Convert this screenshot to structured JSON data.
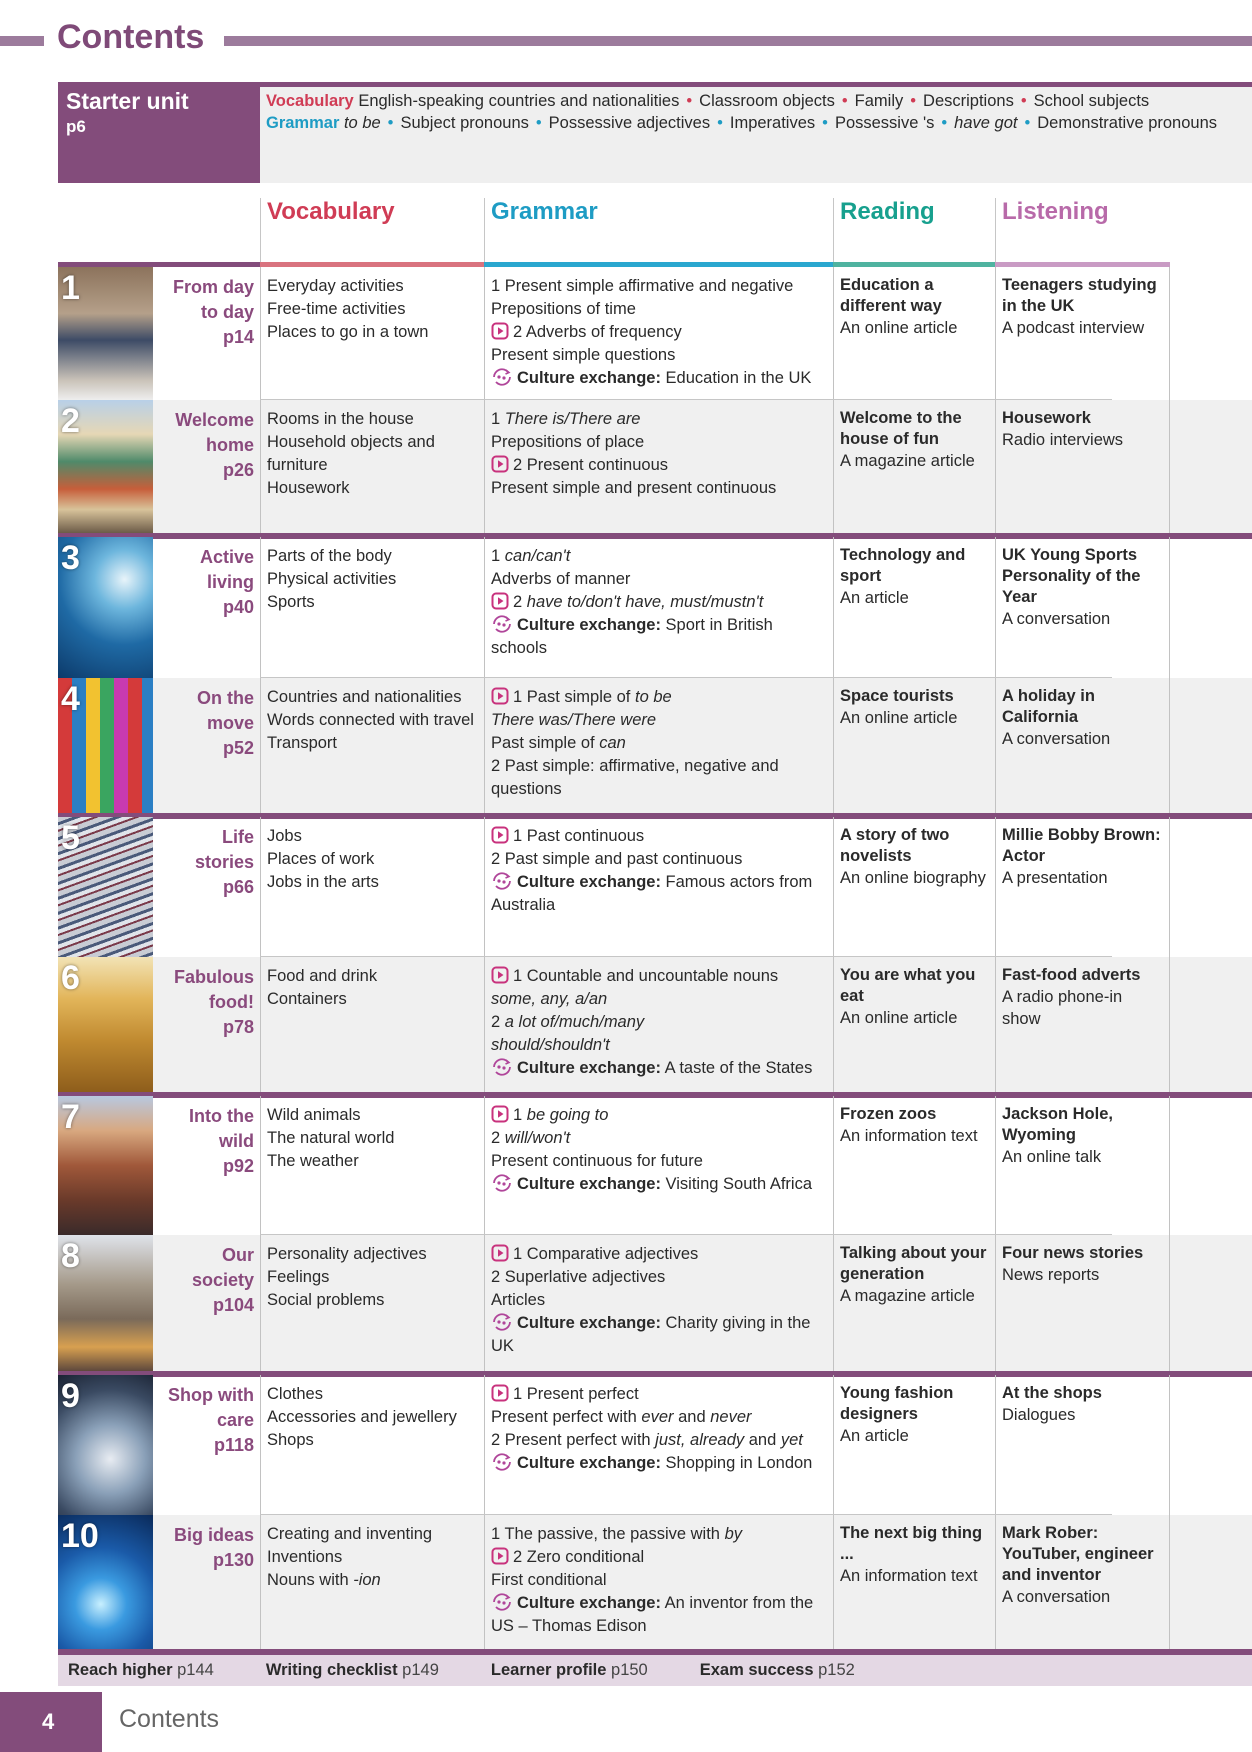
{
  "page_title": "Contents",
  "starter": {
    "title": "Starter unit",
    "page": "p6",
    "vocab_label": "Vocabulary",
    "vocab_items": [
      "English-speaking countries and nationalities",
      "Classroom objects",
      "Family",
      "Descriptions",
      "School subjects"
    ],
    "grammar_label": "Grammar",
    "grammar_items": [
      [
        [
          "to be",
          "i"
        ]
      ],
      [
        [
          "Subject pronouns",
          ""
        ]
      ],
      [
        [
          "Possessive adjectives",
          ""
        ]
      ],
      [
        [
          "Imperatives",
          ""
        ]
      ],
      [
        [
          "Possessive 's",
          ""
        ]
      ],
      [
        [
          "have got",
          "i"
        ]
      ],
      [
        [
          "Demonstrative pronouns",
          ""
        ]
      ]
    ]
  },
  "headers": [
    {
      "label": "Vocabulary",
      "color": "#d03c55",
      "bar": "#d9737f"
    },
    {
      "label": "Grammar",
      "color": "#1e9cc4",
      "bar": "#2aa7cf"
    },
    {
      "label": "Reading",
      "color": "#17a08e",
      "bar": "#4fb3a0"
    },
    {
      "label": "Listening",
      "color": "#b86aa9",
      "bar": "#c99bc4"
    }
  ],
  "colors": {
    "brand": "#834c7b",
    "video_icon": "#c8327d",
    "culture_icon": "#b0469a"
  },
  "culture_label": "Culture exchange:",
  "units": [
    {
      "num": "1",
      "title": [
        "From day",
        "to day"
      ],
      "page": "p14",
      "image": "students-walking",
      "vocab": [
        [
          [
            "Everyday activities",
            ""
          ]
        ],
        [
          [
            "Free-time activities",
            ""
          ]
        ],
        [
          [
            "Places to go in a town",
            ""
          ]
        ]
      ],
      "grammar": [
        {
          "parts": [
            [
              "1 Present simple affirmative and negative",
              ""
            ]
          ]
        },
        {
          "parts": [
            [
              "Prepositions of time",
              ""
            ]
          ]
        },
        {
          "icon": "video",
          "parts": [
            [
              "2 Adverbs of frequency",
              ""
            ]
          ]
        },
        {
          "parts": [
            [
              "Present simple questions",
              ""
            ]
          ]
        },
        {
          "icon": "culture",
          "parts": [
            [
              "Education in the UK",
              ""
            ]
          ]
        }
      ],
      "reading": {
        "title": "Education a different way",
        "type": "An online article"
      },
      "listening": {
        "title": "Teenagers studying in the UK",
        "type": "A podcast interview"
      }
    },
    {
      "num": "2",
      "title": [
        "Welcome",
        "home"
      ],
      "page": "p26",
      "image": "houses",
      "vocab": [
        [
          [
            "Rooms in the house",
            ""
          ]
        ],
        [
          [
            "Household objects and furniture",
            ""
          ]
        ],
        [
          [
            "Housework",
            ""
          ]
        ]
      ],
      "grammar": [
        {
          "parts": [
            [
              "1 ",
              ""
            ],
            [
              "There is/There are",
              "i"
            ]
          ]
        },
        {
          "parts": [
            [
              "Prepositions of place",
              ""
            ]
          ]
        },
        {
          "icon": "video",
          "parts": [
            [
              "2 Present continuous",
              ""
            ]
          ]
        },
        {
          "parts": [
            [
              "Present simple and present continuous",
              ""
            ]
          ]
        }
      ],
      "reading": {
        "title": "Welcome to the house of fun",
        "type": "A magazine article"
      },
      "listening": {
        "title": "Housework",
        "type": "Radio interviews"
      }
    },
    {
      "num": "3",
      "title": [
        "Active",
        "living"
      ],
      "page": "p40",
      "image": "wave",
      "vocab": [
        [
          [
            "Parts of the body",
            ""
          ]
        ],
        [
          [
            "Physical activities",
            ""
          ]
        ],
        [
          [
            "Sports",
            ""
          ]
        ]
      ],
      "grammar": [
        {
          "parts": [
            [
              "1 ",
              ""
            ],
            [
              "can/can't",
              "i"
            ]
          ]
        },
        {
          "parts": [
            [
              "Adverbs of manner",
              ""
            ]
          ]
        },
        {
          "icon": "video",
          "parts": [
            [
              "2 ",
              ""
            ],
            [
              "have to/don't have, must/mustn't",
              "i"
            ]
          ]
        },
        {
          "icon": "culture",
          "parts": [
            [
              "Sport in British schools",
              ""
            ]
          ]
        }
      ],
      "reading": {
        "title": "Technology and sport",
        "type": "An article"
      },
      "listening": {
        "title": "UK Young Sports Personality of the Year",
        "type": "A conversation"
      }
    },
    {
      "num": "4",
      "title": [
        "On the",
        "move"
      ],
      "page": "p52",
      "image": "market",
      "vocab": [
        [
          [
            "Countries and nationalities",
            ""
          ]
        ],
        [
          [
            "Words connected with travel",
            ""
          ]
        ],
        [
          [
            "Transport",
            ""
          ]
        ]
      ],
      "grammar": [
        {
          "icon": "video",
          "parts": [
            [
              "1 Past simple of ",
              ""
            ],
            [
              "to be",
              "i"
            ]
          ]
        },
        {
          "parts": [
            [
              "There was/There were",
              "i"
            ]
          ]
        },
        {
          "parts": [
            [
              "Past simple of ",
              ""
            ],
            [
              "can",
              "i"
            ]
          ]
        },
        {
          "parts": [
            [
              "2 Past simple: affirmative, negative and questions",
              ""
            ]
          ]
        }
      ],
      "reading": {
        "title": "Space tourists",
        "type": "An online article"
      },
      "listening": {
        "title": "A holiday in California",
        "type": "A conversation"
      }
    },
    {
      "num": "5",
      "title": [
        "Life",
        "stories"
      ],
      "page": "p66",
      "image": "mixing-desk",
      "vocab": [
        [
          [
            "Jobs",
            ""
          ]
        ],
        [
          [
            "Places of work",
            ""
          ]
        ],
        [
          [
            "Jobs in the arts",
            ""
          ]
        ]
      ],
      "grammar": [
        {
          "icon": "video",
          "parts": [
            [
              "1 Past continuous",
              ""
            ]
          ]
        },
        {
          "parts": [
            [
              "2 Past simple and past continuous",
              ""
            ]
          ]
        },
        {
          "icon": "culture",
          "parts": [
            [
              "Famous actors from Australia",
              ""
            ]
          ]
        }
      ],
      "reading": {
        "title": "A story of two novelists",
        "type": "An online biography"
      },
      "listening": {
        "title": "Millie Bobby Brown: Actor",
        "type": "A presentation"
      }
    },
    {
      "num": "6",
      "title": [
        "Fabulous",
        "food!"
      ],
      "page": "p78",
      "image": "wheat",
      "vocab": [
        [
          [
            "Food and drink",
            ""
          ]
        ],
        [
          [
            "Containers",
            ""
          ]
        ]
      ],
      "grammar": [
        {
          "icon": "video",
          "parts": [
            [
              "1 Countable and uncountable nouns",
              ""
            ]
          ]
        },
        {
          "parts": [
            [
              "some, any, a/an",
              "i"
            ]
          ]
        },
        {
          "parts": [
            [
              "2 ",
              ""
            ],
            [
              "a lot of/much/many",
              "i"
            ]
          ]
        },
        {
          "parts": [
            [
              "should/shouldn't",
              "i"
            ]
          ]
        },
        {
          "icon": "culture",
          "parts": [
            [
              "A taste of the States",
              ""
            ]
          ]
        }
      ],
      "reading": {
        "title": "You are what you eat",
        "type": "An online article"
      },
      "listening": {
        "title": "Fast-food adverts",
        "type": "A radio phone-in show"
      }
    },
    {
      "num": "7",
      "title": [
        "Into the",
        "wild"
      ],
      "page": "p92",
      "image": "canyon",
      "vocab": [
        [
          [
            "Wild animals",
            ""
          ]
        ],
        [
          [
            "The natural world",
            ""
          ]
        ],
        [
          [
            "The weather",
            ""
          ]
        ]
      ],
      "grammar": [
        {
          "icon": "video",
          "parts": [
            [
              "1 ",
              ""
            ],
            [
              "be going to",
              "i"
            ]
          ]
        },
        {
          "parts": [
            [
              "2 ",
              ""
            ],
            [
              "will/won't",
              "i"
            ]
          ]
        },
        {
          "parts": [
            [
              "Present continuous for future",
              ""
            ]
          ]
        },
        {
          "icon": "culture",
          "parts": [
            [
              "Visiting South Africa",
              ""
            ]
          ]
        }
      ],
      "reading": {
        "title": "Frozen zoos",
        "type": "An information text"
      },
      "listening": {
        "title": "Jackson Hole, Wyoming",
        "type": "An online talk"
      }
    },
    {
      "num": "8",
      "title": [
        "Our",
        "society"
      ],
      "page": "p104",
      "image": "city",
      "vocab": [
        [
          [
            "Personality adjectives",
            ""
          ]
        ],
        [
          [
            "Feelings",
            ""
          ]
        ],
        [
          [
            "Social problems",
            ""
          ]
        ]
      ],
      "grammar": [
        {
          "icon": "video",
          "parts": [
            [
              "1 Comparative adjectives",
              ""
            ]
          ]
        },
        {
          "parts": [
            [
              "2 Superlative adjectives",
              ""
            ]
          ]
        },
        {
          "parts": [
            [
              "Articles",
              ""
            ]
          ]
        },
        {
          "icon": "culture",
          "parts": [
            [
              "Charity giving in the UK",
              ""
            ]
          ]
        }
      ],
      "reading": {
        "title": "Talking about your generation",
        "type": "A magazine article"
      },
      "listening": {
        "title": "Four news stories",
        "type": "News reports"
      }
    },
    {
      "num": "9",
      "title": [
        "Shop with",
        "care"
      ],
      "page": "p118",
      "image": "shopping-mall",
      "vocab": [
        [
          [
            "Clothes",
            ""
          ]
        ],
        [
          [
            "Accessories and jewellery",
            ""
          ]
        ],
        [
          [
            "Shops",
            ""
          ]
        ]
      ],
      "grammar": [
        {
          "icon": "video",
          "parts": [
            [
              "1 Present perfect",
              ""
            ]
          ]
        },
        {
          "parts": [
            [
              "Present perfect with ",
              ""
            ],
            [
              "ever",
              "i"
            ],
            [
              " and ",
              ""
            ],
            [
              "never",
              "i"
            ]
          ]
        },
        {
          "parts": [
            [
              "2 Present perfect with ",
              ""
            ],
            [
              "just, already",
              "i"
            ],
            [
              " and ",
              ""
            ],
            [
              "yet",
              "i"
            ]
          ]
        },
        {
          "icon": "culture",
          "parts": [
            [
              "Shopping in London",
              ""
            ]
          ]
        }
      ],
      "reading": {
        "title": "Young fashion designers",
        "type": "An article"
      },
      "listening": {
        "title": "At the shops",
        "type": "Dialogues"
      }
    },
    {
      "num": "10",
      "title": [
        "Big ideas"
      ],
      "page": "p130",
      "image": "circuit",
      "vocab": [
        [
          [
            "Creating and inventing",
            ""
          ]
        ],
        [
          [
            "Inventions",
            ""
          ]
        ],
        [
          [
            "Nouns with ",
            ""
          ],
          [
            "-ion",
            "i"
          ]
        ]
      ],
      "grammar": [
        {
          "parts": [
            [
              "1 The passive, the passive with ",
              ""
            ],
            [
              "by",
              "i"
            ]
          ]
        },
        {
          "icon": "video",
          "parts": [
            [
              "2 Zero conditional",
              ""
            ]
          ]
        },
        {
          "parts": [
            [
              "First conditional",
              ""
            ]
          ]
        },
        {
          "icon": "culture",
          "parts": [
            [
              "An inventor from the US – Thomas Edison",
              ""
            ]
          ]
        }
      ],
      "reading": {
        "title": "The next big thing ...",
        "type": "An information text"
      },
      "listening": {
        "title": "Mark Rober: YouTuber, engineer and inventor",
        "type": "A conversation"
      }
    }
  ],
  "footer": [
    {
      "label": "Reach higher",
      "page": "p144"
    },
    {
      "label": "Writing checklist",
      "page": "p149"
    },
    {
      "label": "Learner profile",
      "page": "p150"
    },
    {
      "label": "Exam success",
      "page": "p152"
    }
  ],
  "page_number": "4",
  "footer_title": "Contents"
}
